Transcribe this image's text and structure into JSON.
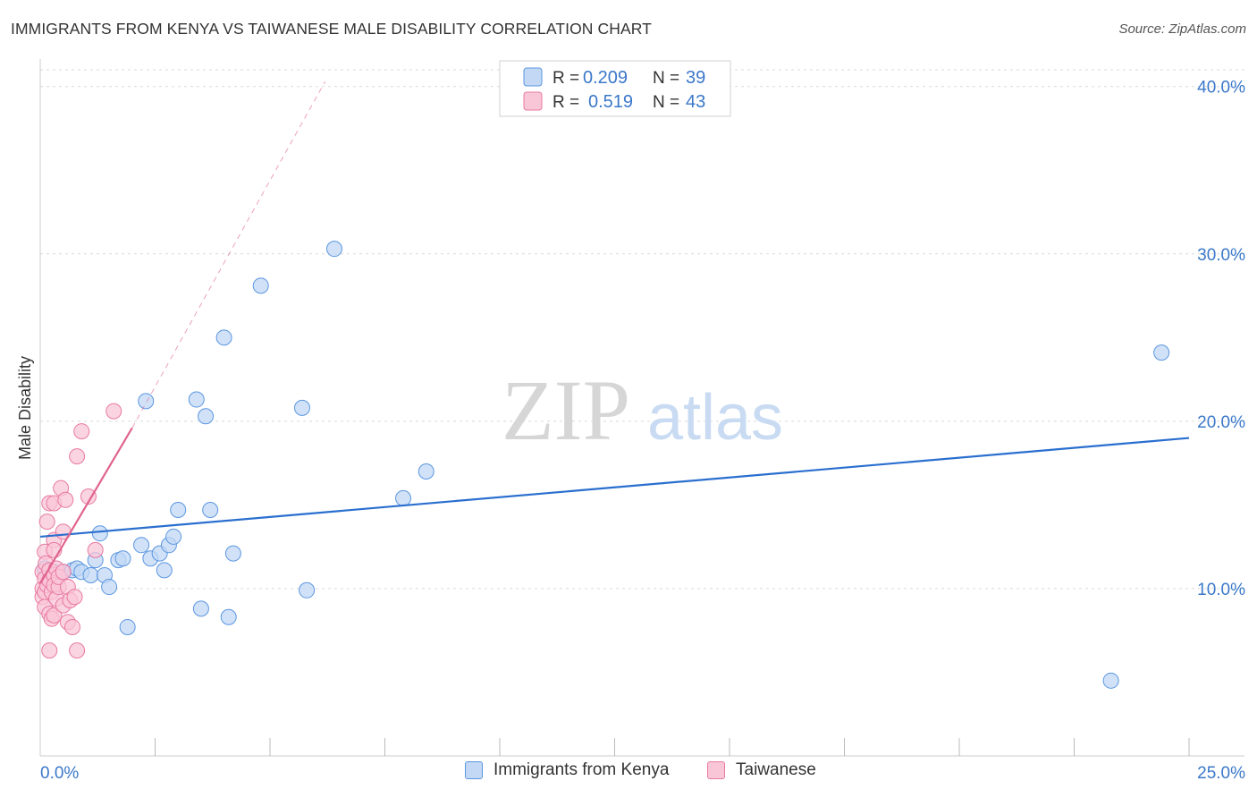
{
  "header": {
    "title": "IMMIGRANTS FROM KENYA VS TAIWANESE MALE DISABILITY CORRELATION CHART",
    "source": "Source: ZipAtlas.com"
  },
  "watermark": {
    "zip": "ZIP",
    "atlas": "atlas"
  },
  "colors": {
    "blue": "#5b96e0",
    "blue_fill": "#c2d8f5",
    "blue_line": "#2a6fcf",
    "pink": "#e87aa2",
    "pink_fill": "#f9c6d7",
    "pink_line": "#e0648f",
    "axis_text": "#3a78c9",
    "grid": "#d9d9d9"
  },
  "legend": {
    "rows": [
      {
        "r_label": "R =",
        "r_value": "0.209",
        "n_label": "N =",
        "n_value": "39"
      },
      {
        "r_label": "R =",
        "r_value": "0.519",
        "n_label": "N =",
        "n_value": "43"
      }
    ]
  },
  "chart_data": {
    "type": "scatter",
    "title": "IMMIGRANTS FROM KENYA VS TAIWANESE MALE DISABILITY CORRELATION CHART",
    "xlabel": "",
    "ylabel": "Male Disability",
    "xlim": [
      0,
      25
    ],
    "ylim": [
      0,
      41
    ],
    "x_tick_labels": [
      "0.0%",
      "25.0%"
    ],
    "y_ticks": [
      10,
      20,
      30,
      40
    ],
    "y_tick_labels": [
      "10.0%",
      "20.0%",
      "30.0%",
      "40.0%"
    ],
    "grid": true,
    "legend_position": "top-center",
    "series": [
      {
        "name": "Immigrants from Kenya",
        "color": "blue",
        "r": 0.209,
        "n": 39,
        "trend": {
          "x0": 0,
          "y0": 13.1,
          "x1": 25,
          "y1": 19.0
        },
        "points": [
          [
            0.2,
            11.1
          ],
          [
            0.3,
            11.0
          ],
          [
            0.4,
            10.8
          ],
          [
            0.5,
            11.0
          ],
          [
            0.7,
            11.1
          ],
          [
            0.8,
            11.2
          ],
          [
            0.9,
            11.0
          ],
          [
            1.1,
            10.8
          ],
          [
            1.2,
            11.7
          ],
          [
            1.3,
            13.3
          ],
          [
            1.4,
            10.8
          ],
          [
            1.5,
            10.1
          ],
          [
            1.7,
            11.7
          ],
          [
            1.8,
            11.8
          ],
          [
            1.9,
            7.7
          ],
          [
            2.2,
            12.6
          ],
          [
            2.3,
            21.2
          ],
          [
            2.4,
            11.8
          ],
          [
            2.6,
            12.1
          ],
          [
            2.7,
            11.1
          ],
          [
            2.8,
            12.6
          ],
          [
            2.9,
            13.1
          ],
          [
            3.0,
            14.7
          ],
          [
            3.4,
            21.3
          ],
          [
            3.5,
            8.8
          ],
          [
            3.6,
            20.3
          ],
          [
            3.7,
            14.7
          ],
          [
            4.0,
            25.0
          ],
          [
            4.1,
            8.3
          ],
          [
            4.2,
            12.1
          ],
          [
            4.8,
            28.1
          ],
          [
            5.7,
            20.8
          ],
          [
            5.8,
            9.9
          ],
          [
            6.4,
            30.3
          ],
          [
            7.9,
            15.4
          ],
          [
            8.4,
            17.0
          ],
          [
            23.3,
            4.5
          ],
          [
            24.4,
            24.1
          ],
          [
            0.1,
            11.2
          ]
        ]
      },
      {
        "name": "Taiwanese",
        "color": "pink",
        "r": 0.519,
        "n": 43,
        "trend": {
          "x0": 0,
          "y0": 10.3,
          "x1": 2.0,
          "y1": 19.6,
          "dash_x1": 6.2,
          "dash_y1": 40.3
        },
        "points": [
          [
            0.05,
            10.0
          ],
          [
            0.05,
            9.5
          ],
          [
            0.05,
            11.0
          ],
          [
            0.1,
            12.2
          ],
          [
            0.1,
            10.6
          ],
          [
            0.1,
            9.8
          ],
          [
            0.1,
            8.9
          ],
          [
            0.12,
            11.5
          ],
          [
            0.15,
            14.0
          ],
          [
            0.15,
            10.2
          ],
          [
            0.2,
            15.1
          ],
          [
            0.2,
            11.1
          ],
          [
            0.2,
            10.5
          ],
          [
            0.2,
            8.5
          ],
          [
            0.2,
            6.3
          ],
          [
            0.25,
            9.8
          ],
          [
            0.25,
            8.2
          ],
          [
            0.3,
            15.1
          ],
          [
            0.3,
            12.9
          ],
          [
            0.3,
            12.3
          ],
          [
            0.3,
            10.8
          ],
          [
            0.3,
            10.2
          ],
          [
            0.3,
            8.4
          ],
          [
            0.35,
            11.2
          ],
          [
            0.35,
            9.4
          ],
          [
            0.4,
            10.1
          ],
          [
            0.4,
            10.7
          ],
          [
            0.45,
            16.0
          ],
          [
            0.5,
            13.4
          ],
          [
            0.5,
            11.0
          ],
          [
            0.5,
            9.0
          ],
          [
            0.55,
            15.3
          ],
          [
            0.6,
            8.0
          ],
          [
            0.6,
            10.1
          ],
          [
            0.65,
            9.3
          ],
          [
            0.7,
            7.7
          ],
          [
            0.75,
            9.5
          ],
          [
            0.8,
            6.3
          ],
          [
            0.8,
            17.9
          ],
          [
            0.9,
            19.4
          ],
          [
            1.05,
            15.5
          ],
          [
            1.2,
            12.3
          ],
          [
            1.6,
            20.6
          ]
        ]
      }
    ]
  },
  "bottom_legend": [
    {
      "label": "Immigrants from Kenya",
      "color": "blue"
    },
    {
      "label": "Taiwanese",
      "color": "pink"
    }
  ]
}
